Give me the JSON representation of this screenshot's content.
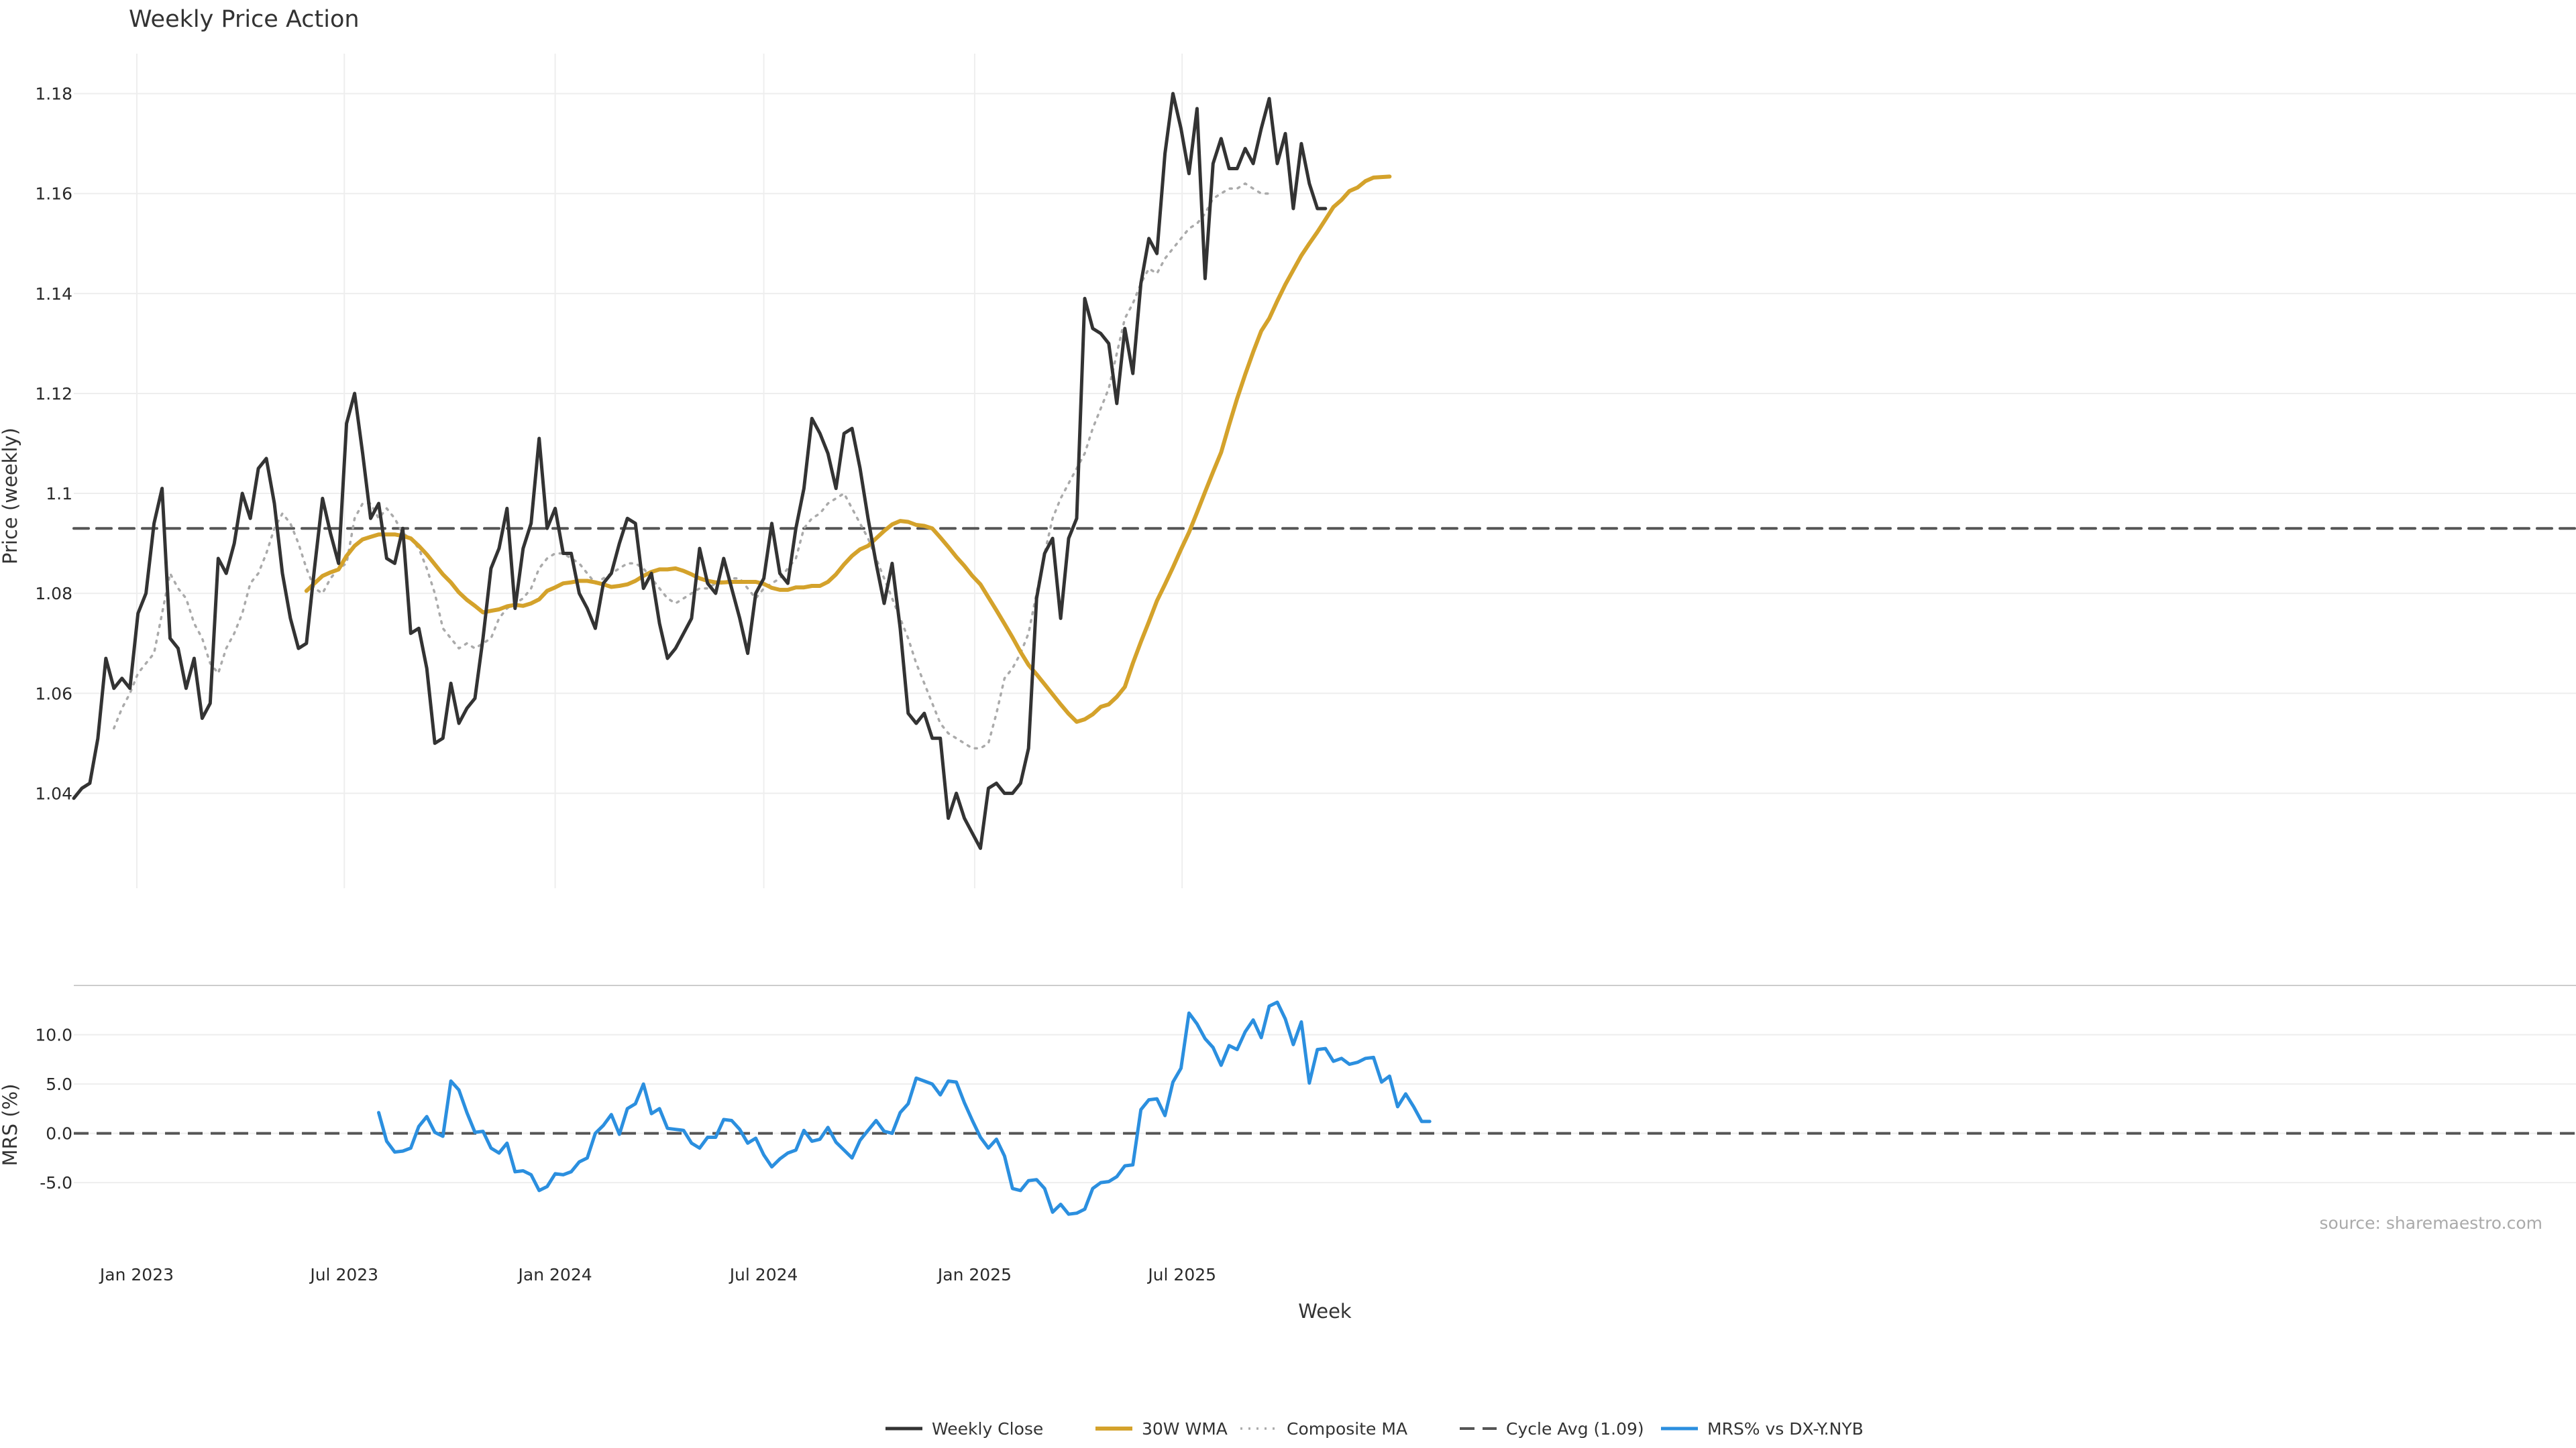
{
  "chart_data": {
    "type": "line",
    "title": "Weekly Price Action",
    "xlabel": "Week",
    "source_note": "source: sharemaestro.com",
    "x_ticks": [
      "Jan 2023",
      "Jul 2023",
      "Jan 2024",
      "Jul 2024",
      "Jan 2025",
      "Jul 2025"
    ],
    "grid": true,
    "legend_position": "bottom-center",
    "start_date": "2022-11-07",
    "price_panel": {
      "ylabel": "Price (weekly)",
      "ylim": [
        1.021,
        1.188
      ],
      "y_ticks": [
        "1.04",
        "1.06",
        "1.08",
        "1.1",
        "1.12",
        "1.14",
        "1.16",
        "1.18"
      ],
      "series": [
        {
          "name": "Weekly Close",
          "color": "#333333",
          "style": "solid",
          "values": [
            1.039,
            1.041,
            1.042,
            1.051,
            1.067,
            1.061,
            1.063,
            1.061,
            1.076,
            1.08,
            1.094,
            1.101,
            1.071,
            1.069,
            1.061,
            1.067,
            1.055,
            1.058,
            1.087,
            1.084,
            1.09,
            1.1,
            1.095,
            1.105,
            1.107,
            1.098,
            1.084,
            1.075,
            1.069,
            1.07,
            1.085,
            1.099,
            1.092,
            1.086,
            1.114,
            1.12,
            1.108,
            1.095,
            1.098,
            1.087,
            1.086,
            1.093,
            1.072,
            1.073,
            1.065,
            1.05,
            1.051,
            1.062,
            1.054,
            1.057,
            1.059,
            1.071,
            1.085,
            1.089,
            1.097,
            1.077,
            1.089,
            1.094,
            1.111,
            1.093,
            1.097,
            1.088,
            1.088,
            1.08,
            1.077,
            1.073,
            1.082,
            1.084,
            1.09,
            1.095,
            1.094,
            1.081,
            1.084,
            1.074,
            1.067,
            1.069,
            1.072,
            1.075,
            1.089,
            1.082,
            1.08,
            1.087,
            1.081,
            1.075,
            1.068,
            1.08,
            1.083,
            1.094,
            1.084,
            1.082,
            1.093,
            1.101,
            1.115,
            1.112,
            1.108,
            1.101,
            1.112,
            1.113,
            1.105,
            1.095,
            1.086,
            1.078,
            1.086,
            1.073,
            1.056,
            1.054,
            1.056,
            1.051,
            1.051,
            1.035,
            1.04,
            1.035,
            1.032,
            1.029,
            1.041,
            1.042,
            1.04,
            1.04,
            1.042,
            1.049,
            1.079,
            1.088,
            1.091,
            1.075,
            1.091,
            1.095,
            1.139,
            1.133,
            1.132,
            1.13,
            1.118,
            1.133,
            1.124,
            1.142,
            1.151,
            1.148,
            1.168,
            1.18,
            1.173,
            1.164,
            1.177,
            1.143,
            1.166,
            1.171,
            1.165,
            1.165,
            1.169,
            1.166,
            1.173,
            1.179,
            1.166,
            1.172,
            1.157,
            1.17,
            1.162,
            1.157,
            1.157
          ]
        },
        {
          "name": "30W WMA",
          "color": "#d4a22b",
          "style": "solid",
          "start_index": 29,
          "values": [
            1.0805,
            1.082,
            1.0835,
            1.0842,
            1.0848,
            1.0875,
            1.0895,
            1.0908,
            1.0913,
            1.0918,
            1.0918,
            1.0918,
            1.0915,
            1.091,
            1.0895,
            1.0878,
            1.0858,
            1.0838,
            1.0822,
            1.0802,
            1.0787,
            1.0775,
            1.0762,
            1.0765,
            1.0768,
            1.0774,
            1.0777,
            1.0775,
            1.078,
            1.0788,
            1.0805,
            1.0812,
            1.082,
            1.0822,
            1.0825,
            1.0825,
            1.0822,
            1.0818,
            1.0813,
            1.0815,
            1.0818,
            1.0825,
            1.0835,
            1.0843,
            1.0848,
            1.0848,
            1.085,
            1.0845,
            1.0838,
            1.083,
            1.0825,
            1.0822,
            1.0822,
            1.0823,
            1.0823,
            1.0823,
            1.0823,
            1.0819,
            1.0811,
            1.0807,
            1.0807,
            1.0812,
            1.0812,
            1.0815,
            1.0815,
            1.0823,
            1.0838,
            1.0858,
            1.0875,
            1.0888,
            1.0895,
            1.091,
            1.0925,
            1.0938,
            1.0945,
            1.0943,
            1.0937,
            1.0935,
            1.093,
            1.0912,
            1.0893,
            1.0873,
            1.0855,
            1.0835,
            1.0818,
            1.0792,
            1.0766,
            1.0739,
            1.0712,
            1.0683,
            1.0657,
            1.0638,
            1.0618,
            1.0598,
            1.0578,
            1.0559,
            1.0543,
            1.0548,
            1.0558,
            1.0573,
            1.0578,
            1.0593,
            1.0613,
            1.066,
            1.0703,
            1.0743,
            1.0785,
            1.0818,
            1.0852,
            1.0888,
            1.0922,
            1.0962,
            1.1003,
            1.1043,
            1.1082,
            1.1137,
            1.119,
            1.1238,
            1.1283,
            1.1325,
            1.135,
            1.1385,
            1.1418,
            1.1447,
            1.1476,
            1.15,
            1.1523,
            1.1548,
            1.1573,
            1.1587,
            1.1605,
            1.1612,
            1.1625,
            1.1632,
            1.1633,
            1.1634
          ]
        },
        {
          "name": "Composite MA",
          "color": "#aaaaaa",
          "style": "dotted",
          "start_index": 5,
          "values": [
            1.053,
            1.057,
            1.06,
            1.064,
            1.066,
            1.068,
            1.076,
            1.084,
            1.081,
            1.079,
            1.074,
            1.071,
            1.066,
            1.064,
            1.069,
            1.072,
            1.076,
            1.082,
            1.084,
            1.088,
            1.093,
            1.096,
            1.094,
            1.09,
            1.085,
            1.081,
            1.08,
            1.083,
            1.085,
            1.086,
            1.095,
            1.098,
            1.098,
            1.095,
            1.097,
            1.095,
            1.092,
            1.091,
            1.089,
            1.085,
            1.08,
            1.073,
            1.071,
            1.069,
            1.07,
            1.069,
            1.07,
            1.071,
            1.075,
            1.077,
            1.078,
            1.079,
            1.081,
            1.085,
            1.087,
            1.088,
            1.088,
            1.087,
            1.086,
            1.084,
            1.082,
            1.083,
            1.084,
            1.085,
            1.086,
            1.086,
            1.085,
            1.083,
            1.081,
            1.079,
            1.078,
            1.079,
            1.08,
            1.081,
            1.081,
            1.082,
            1.082,
            1.083,
            1.083,
            1.081,
            1.079,
            1.081,
            1.082,
            1.083,
            1.085,
            1.087,
            1.093,
            1.095,
            1.096,
            1.098,
            1.099,
            1.1,
            1.097,
            1.094,
            1.091,
            1.087,
            1.083,
            1.079,
            1.075,
            1.071,
            1.066,
            1.062,
            1.058,
            1.054,
            1.052,
            1.051,
            1.05,
            1.049,
            1.049,
            1.05,
            1.056,
            1.063,
            1.065,
            1.068,
            1.072,
            1.08,
            1.088,
            1.095,
            1.099,
            1.102,
            1.105,
            1.108,
            1.113,
            1.117,
            1.121,
            1.128,
            1.135,
            1.138,
            1.142,
            1.145,
            1.144,
            1.147,
            1.149,
            1.151,
            1.153,
            1.154,
            1.156,
            1.159,
            1.16,
            1.161,
            1.161,
            1.162,
            1.161,
            1.16,
            1.16
          ]
        },
        {
          "name": "Cycle Avg (1.09)",
          "color": "#555555",
          "style": "dashed",
          "constant": 1.093
        }
      ]
    },
    "mrs_panel": {
      "ylabel": "MRS (%)",
      "ylim": [
        -8.8,
        15.0
      ],
      "y_ticks": [
        "-5.0",
        "0.0",
        "5.0",
        "10.0"
      ],
      "zero_line": 0,
      "series": [
        {
          "name": "MRS% vs DX-Y.NYB",
          "color": "#2b8fdf",
          "style": "solid",
          "start_index": 38,
          "values": [
            2.1,
            -0.8,
            -1.9,
            -1.8,
            -1.5,
            0.7,
            1.7,
            0.1,
            -0.3,
            5.3,
            4.4,
            2.1,
            0.1,
            0.2,
            -1.5,
            -2.0,
            -1.0,
            -3.9,
            -3.8,
            -4.2,
            -5.8,
            -5.4,
            -4.1,
            -4.2,
            -3.9,
            -2.9,
            -2.5,
            0.0,
            0.8,
            1.9,
            -0.1,
            2.5,
            3.0,
            5.0,
            2.0,
            2.5,
            0.5,
            0.4,
            0.3,
            -1.0,
            -1.5,
            -0.4,
            -0.4,
            1.4,
            1.3,
            0.4,
            -1.0,
            -0.5,
            -2.2,
            -3.4,
            -2.6,
            -2.0,
            -1.7,
            0.3,
            -0.8,
            -0.6,
            0.6,
            -0.9,
            -1.7,
            -2.5,
            -0.7,
            0.3,
            1.3,
            0.2,
            0.0,
            2.1,
            3.0,
            5.6,
            5.3,
            5.0,
            3.9,
            5.3,
            5.2,
            3.1,
            1.3,
            -0.4,
            -1.5,
            -0.6,
            -2.3,
            -5.6,
            -5.8,
            -4.8,
            -4.7,
            -5.6,
            -8.0,
            -7.2,
            -8.2,
            -8.1,
            -7.7,
            -5.6,
            -5.0,
            -4.9,
            -4.4,
            -3.3,
            -3.2,
            2.4,
            3.4,
            3.5,
            1.8,
            5.2,
            6.6,
            12.2,
            11.1,
            9.6,
            8.7,
            6.9,
            8.9,
            8.5,
            10.3,
            11.5,
            9.7,
            12.9,
            13.3,
            11.6,
            9.0,
            11.3,
            5.1,
            8.5,
            8.6,
            7.3,
            7.6,
            7.0,
            7.2,
            7.6,
            7.7,
            5.2,
            5.8,
            2.7,
            4.0,
            2.7,
            1.2,
            1.2
          ]
        }
      ]
    }
  }
}
